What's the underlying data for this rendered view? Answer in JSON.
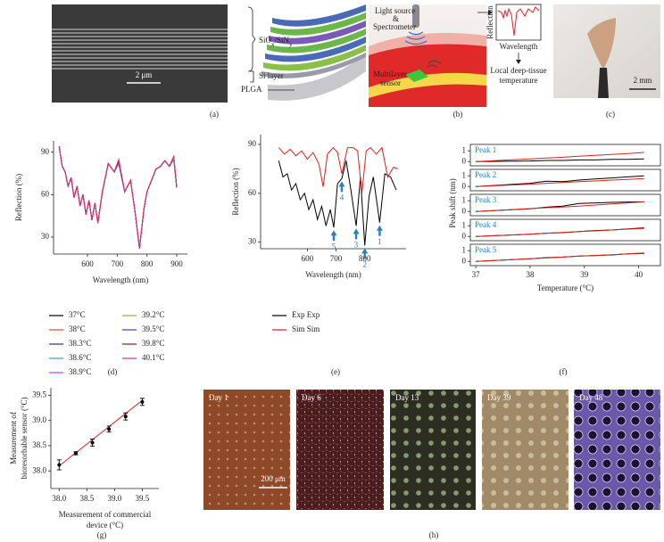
{
  "figure": {
    "panel_labels": [
      "(a)",
      "(b)",
      "(c)",
      "(d)",
      "(e)",
      "(f)",
      "(g)",
      "(h)"
    ],
    "a": {
      "layers": [
        "SiO",
        "x",
        "/SiN",
        "y"
      ],
      "si_layer": "Si layer",
      "plga": "PLGA",
      "scale": "2 μm"
    },
    "b": {
      "source": [
        "Light source",
        "&",
        "Spectrometer"
      ],
      "sensor": [
        "Multilayer",
        "sensor"
      ],
      "inset_y": "Reflection",
      "inset_x": "Wavelength",
      "result": [
        "Local deep-tissue",
        "temperature"
      ]
    },
    "c": {
      "scale": "2 mm"
    },
    "h": {
      "days": [
        "Day 1",
        "Day 6",
        "Day 13",
        "Day 39",
        "Day 48"
      ],
      "scale": "200 μm"
    }
  },
  "chart_data": [
    {
      "type": "line",
      "xlabel": "Wavelength (nm)",
      "ylabel": "Reflection (%)",
      "xlim": [
        486,
        936
      ],
      "ylim": [
        18,
        98
      ],
      "xticks": [
        600,
        700,
        800,
        900
      ],
      "yticks": [
        30,
        60,
        90
      ],
      "x": [
        505,
        515,
        525,
        535,
        545,
        555,
        565,
        575,
        585,
        595,
        605,
        615,
        625,
        635,
        650,
        670,
        690,
        705,
        725,
        745,
        760,
        775,
        790,
        800,
        815,
        830,
        845,
        860,
        875,
        890,
        900
      ],
      "series": [
        {
          "name": "37°C",
          "color": "#000000",
          "values": [
            94,
            80,
            76,
            66,
            72,
            58,
            66,
            52,
            60,
            46,
            56,
            42,
            54,
            40,
            62,
            82,
            76,
            82,
            62,
            70,
            48,
            22,
            50,
            62,
            70,
            78,
            80,
            84,
            80,
            85,
            65
          ]
        },
        {
          "name": "38°C",
          "color": "#e8413a",
          "values": [
            94,
            80,
            76,
            66,
            72,
            58,
            66,
            52,
            60,
            46,
            56,
            42,
            54,
            40,
            62,
            82,
            76,
            82,
            62,
            70,
            48,
            22,
            50,
            62,
            70,
            78,
            80,
            84,
            80,
            85,
            65
          ]
        },
        {
          "name": "38.3°C",
          "color": "#283b7a",
          "values": [
            94,
            80,
            76,
            66,
            72,
            58,
            66,
            52,
            60,
            46,
            56,
            42,
            54,
            40,
            62,
            82,
            76,
            83,
            62,
            70,
            48,
            22,
            50,
            62,
            70,
            78,
            80,
            84,
            80,
            86,
            65
          ]
        },
        {
          "name": "38.6°C",
          "color": "#3aa89a",
          "values": [
            94,
            80,
            76,
            66,
            72,
            58,
            66,
            52,
            60,
            46,
            56,
            42,
            54,
            40,
            62,
            82,
            76,
            83,
            62,
            70,
            48,
            22,
            50,
            62,
            70,
            78,
            80,
            84,
            80,
            86,
            65
          ]
        },
        {
          "name": "38.9°C",
          "color": "#d23fd2",
          "values": [
            94,
            80,
            76,
            66,
            72,
            58,
            66,
            52,
            60,
            46,
            56,
            42,
            54,
            40,
            62,
            82,
            76,
            83,
            62,
            70,
            48,
            22,
            50,
            62,
            70,
            78,
            80,
            84,
            80,
            86,
            65
          ]
        },
        {
          "name": "39.2°C",
          "color": "#8ab33a",
          "values": [
            94,
            80,
            76,
            66,
            72,
            58,
            66,
            52,
            60,
            46,
            56,
            42,
            54,
            40,
            62,
            82,
            76,
            84,
            62,
            70,
            48,
            22,
            50,
            62,
            70,
            78,
            80,
            84,
            80,
            86,
            65
          ]
        },
        {
          "name": "39.5°C",
          "color": "#4b3fa0",
          "values": [
            94,
            80,
            76,
            66,
            72,
            58,
            66,
            52,
            60,
            46,
            56,
            42,
            54,
            40,
            62,
            82,
            76,
            84,
            62,
            70,
            48,
            22,
            50,
            62,
            70,
            78,
            80,
            84,
            80,
            87,
            65
          ]
        },
        {
          "name": "39.8°C",
          "color": "#8a1a2a",
          "values": [
            94,
            80,
            76,
            66,
            72,
            58,
            66,
            52,
            60,
            46,
            56,
            42,
            54,
            40,
            62,
            82,
            76,
            84,
            62,
            70,
            48,
            22,
            50,
            62,
            70,
            78,
            80,
            84,
            80,
            87,
            65
          ]
        },
        {
          "name": "40.1°C",
          "color": "#e0307a",
          "values": [
            94,
            80,
            76,
            66,
            72,
            58,
            66,
            52,
            60,
            46,
            56,
            42,
            54,
            40,
            62,
            82,
            76,
            85,
            62,
            70,
            48,
            22,
            50,
            62,
            70,
            78,
            80,
            84,
            80,
            87,
            65
          ]
        }
      ]
    },
    {
      "type": "line",
      "xlabel": "Wavelength (nm)",
      "ylabel": "Reflection (%)",
      "xlim": [
        437,
        944
      ],
      "ylim": [
        26,
        96
      ],
      "xticks": [
        600,
        700,
        800
      ],
      "yticks": [
        30,
        60,
        90
      ],
      "series": [
        {
          "name": "Exp Exp",
          "color": "#000000",
          "x": [
            500,
            515,
            530,
            545,
            560,
            575,
            590,
            605,
            620,
            635,
            650,
            665,
            680,
            692,
            705,
            720,
            735,
            750,
            770,
            785,
            800,
            815,
            830,
            852,
            870,
            890,
            910
          ],
          "values": [
            80,
            70,
            72,
            62,
            66,
            56,
            60,
            50,
            56,
            44,
            52,
            40,
            50,
            39,
            66,
            69,
            80,
            64,
            40,
            70,
            28,
            58,
            70,
            42,
            72,
            70,
            62
          ]
        },
        {
          "name": "Sim Sim",
          "color": "#e02020",
          "x": [
            500,
            520,
            540,
            560,
            580,
            600,
            620,
            640,
            655,
            670,
            690,
            705,
            720,
            740,
            760,
            775,
            790,
            805,
            820,
            840,
            860,
            880,
            900,
            915
          ],
          "values": [
            88,
            84,
            87,
            83,
            86,
            81,
            85,
            78,
            64,
            84,
            88,
            85,
            72,
            88,
            88,
            86,
            60,
            86,
            88,
            84,
            88,
            70,
            76,
            75
          ]
        }
      ],
      "annotation_color": "#2a7fc0",
      "annotations": [
        {
          "text": "1",
          "x": 852,
          "y": 42
        },
        {
          "text": "2",
          "x": 800,
          "y": 28
        },
        {
          "text": "3",
          "x": 770,
          "y": 40
        },
        {
          "text": "4",
          "x": 720,
          "y": 69
        },
        {
          "text": "5",
          "x": 692,
          "y": 39
        }
      ]
    },
    {
      "type": "multiline",
      "xlabel": "Temperature (°C)",
      "ylabel": "Peak shift (nm)",
      "xlim": [
        36.9,
        40.4
      ],
      "xticks": [
        37,
        38,
        39,
        40
      ],
      "ylim": [
        -0.4,
        1.6
      ],
      "yticks": [
        0,
        1
      ],
      "label_color": "#2a7fc0",
      "x": [
        37,
        38,
        38.3,
        38.6,
        38.9,
        39.2,
        39.5,
        39.8,
        40.1
      ],
      "panels": [
        {
          "label": "Peak 1",
          "series": [
            {
              "color": "#000000",
              "values": [
                0,
                0.05,
                0.1,
                0.1,
                0.15,
                0.15,
                0.2,
                0.2,
                0.25
              ]
            },
            {
              "color": "#e02020",
              "values": [
                0,
                0.25,
                0.33,
                0.4,
                0.5,
                0.58,
                0.66,
                0.75,
                0.85
              ]
            }
          ]
        },
        {
          "label": "Peak 2",
          "series": [
            {
              "color": "#000000",
              "values": [
                0,
                0.3,
                0.5,
                0.45,
                0.6,
                0.7,
                0.8,
                0.9,
                1.0
              ]
            },
            {
              "color": "#e02020",
              "values": [
                0,
                0.22,
                0.3,
                0.37,
                0.45,
                0.52,
                0.6,
                0.67,
                0.75
              ]
            }
          ]
        },
        {
          "label": "Peak 3",
          "series": [
            {
              "color": "#000000",
              "values": [
                0,
                0.25,
                0.4,
                0.5,
                0.75,
                0.8,
                0.85,
                0.88,
                0.9
              ]
            },
            {
              "color": "#e02020",
              "values": [
                0,
                0.27,
                0.35,
                0.42,
                0.5,
                0.6,
                0.7,
                0.8,
                0.9
              ]
            }
          ]
        },
        {
          "label": "Peak 4",
          "series": [
            {
              "color": "#000000",
              "values": [
                0,
                0.2,
                0.3,
                0.35,
                0.45,
                0.55,
                0.6,
                0.7,
                0.8
              ]
            },
            {
              "color": "#e02020",
              "values": [
                0,
                0.22,
                0.3,
                0.37,
                0.45,
                0.52,
                0.6,
                0.68,
                0.75
              ]
            }
          ]
        },
        {
          "label": "Peak 5",
          "series": [
            {
              "color": "#000000",
              "values": [
                0,
                0.25,
                0.35,
                0.4,
                0.5,
                0.55,
                0.6,
                0.7,
                0.75
              ]
            },
            {
              "color": "#e02020",
              "values": [
                0,
                0.24,
                0.32,
                0.4,
                0.48,
                0.55,
                0.62,
                0.7,
                0.78
              ]
            }
          ]
        }
      ]
    },
    {
      "type": "scatter",
      "xlabel": [
        "Measurement of commercial",
        "device (°C)"
      ],
      "ylabel": [
        "Measurement of",
        "bioresorbable sensor (°C)"
      ],
      "xlim": [
        37.85,
        39.8
      ],
      "ylim": [
        37.65,
        39.65
      ],
      "xticks": [
        {
          "value": 38,
          "label": "38.0"
        },
        {
          "value": 38.5,
          "label": "38.5"
        },
        {
          "value": 39,
          "label": "39.0"
        },
        {
          "value": 39.5,
          "label": "39.5"
        }
      ],
      "yticks": [
        {
          "value": 38,
          "label": "38.0"
        },
        {
          "value": 38.5,
          "label": "38.5"
        },
        {
          "value": 39,
          "label": "39.0"
        },
        {
          "value": 39.5,
          "label": "39.5"
        }
      ],
      "color": "#000000",
      "x": [
        38,
        38.3,
        38.6,
        38.9,
        39.2,
        39.5
      ],
      "values": [
        38.12,
        38.35,
        38.56,
        38.83,
        39.08,
        39.37
      ],
      "errors": [
        0.1,
        0.03,
        0.07,
        0.06,
        0.07,
        0.07
      ],
      "fit": {
        "x": [
          38,
          39.5
        ],
        "values": [
          38.1,
          39.4
        ],
        "color": "#e02020"
      }
    }
  ]
}
